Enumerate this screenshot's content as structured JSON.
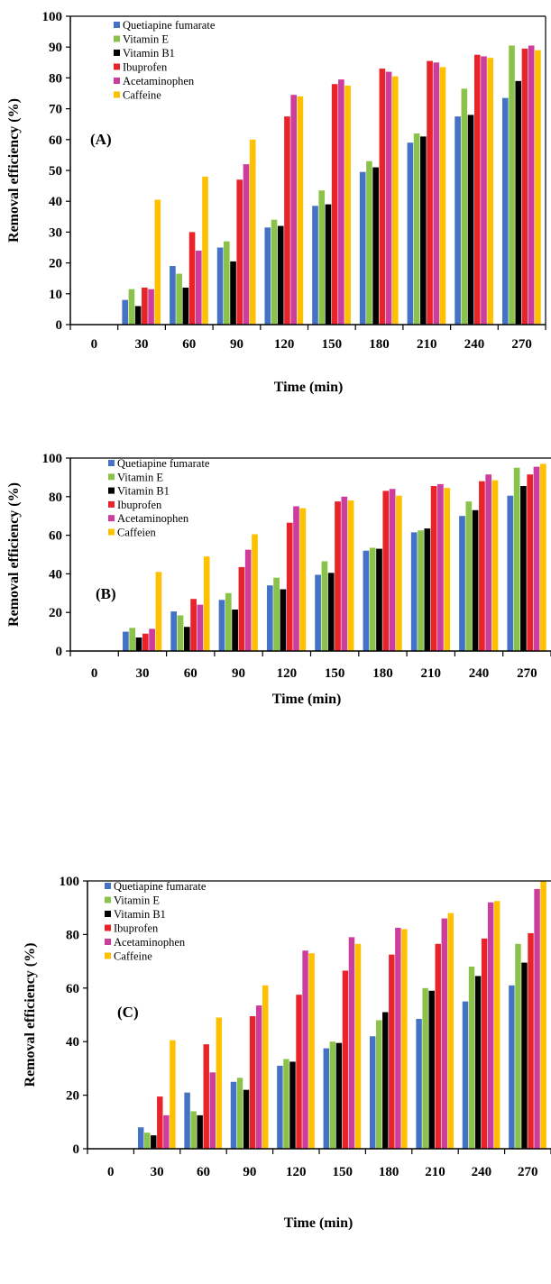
{
  "chart_data": [
    {
      "type": "bar",
      "panel": "(A)",
      "xlabel": "Time (min)",
      "ylabel": "Removal efficiency (%)",
      "ylim": [
        0,
        100
      ],
      "yticks": [
        "0",
        "10",
        "20",
        "30",
        "40",
        "50",
        "60",
        "70",
        "80",
        "90",
        "100"
      ],
      "categories": [
        "0",
        "30",
        "60",
        "90",
        "120",
        "150",
        "180",
        "210",
        "240",
        "270"
      ],
      "legend_position": "top-left",
      "series": [
        {
          "name": "Quetiapine fumarate",
          "color": "#4472C4",
          "values": [
            0,
            8,
            19,
            25,
            31.5,
            38.5,
            49.5,
            59,
            67.5,
            73.5
          ]
        },
        {
          "name": "Vitamin E",
          "color": "#8BC34A",
          "values": [
            0,
            11.5,
            16.5,
            27,
            34,
            43.5,
            53,
            62,
            76.5,
            90.5
          ]
        },
        {
          "name": "Vitamin B1",
          "color": "#000000",
          "values": [
            0,
            6,
            12,
            20.5,
            32,
            39,
            51,
            61,
            68,
            79
          ]
        },
        {
          "name": "Ibuprofen",
          "color": "#E8232A",
          "values": [
            0,
            12,
            30,
            47,
            67.5,
            78,
            83,
            85.5,
            87.5,
            89.5
          ]
        },
        {
          "name": "Acetaminophen",
          "color": "#CC3D9E",
          "values": [
            0,
            11.5,
            24,
            52,
            74.5,
            79.5,
            82,
            85,
            87,
            90.5
          ]
        },
        {
          "name": "Caffeine",
          "color": "#FFC000",
          "values": [
            0,
            40.5,
            48,
            60,
            74,
            77.5,
            80.5,
            83.5,
            86.5,
            89
          ]
        }
      ]
    },
    {
      "type": "bar",
      "panel": "(B)",
      "xlabel": "Time (min)",
      "ylabel": "Removal efficiency (%)",
      "ylim": [
        0,
        100
      ],
      "yticks": [
        "0",
        "20",
        "40",
        "60",
        "80",
        "100"
      ],
      "categories": [
        "0",
        "30",
        "60",
        "90",
        "120",
        "150",
        "180",
        "210",
        "240",
        "270"
      ],
      "legend_position": "top-left",
      "series": [
        {
          "name": "Quetiapine fumarate",
          "color": "#4472C4",
          "values": [
            0,
            10,
            20.5,
            26.5,
            34,
            39.5,
            52,
            61.5,
            70,
            80.5
          ]
        },
        {
          "name": "Vitamin E",
          "color": "#8BC34A",
          "values": [
            0,
            12,
            18.5,
            30,
            38,
            46.5,
            53.5,
            62.5,
            77.5,
            95
          ]
        },
        {
          "name": "Vitamin B1",
          "color": "#000000",
          "values": [
            0,
            7,
            12.5,
            21.5,
            32,
            40.5,
            53,
            63.5,
            73,
            85.5
          ]
        },
        {
          "name": "Ibuprofen",
          "color": "#E8232A",
          "values": [
            0,
            9,
            27,
            43.5,
            66.5,
            77.5,
            83,
            85.5,
            88,
            91.5
          ]
        },
        {
          "name": "Acetaminophen",
          "color": "#CC3D9E",
          "values": [
            0,
            11.5,
            24,
            52.5,
            75,
            80,
            84,
            86.5,
            91.5,
            95.5
          ]
        },
        {
          "name": "Caffeien",
          "color": "#FFC000",
          "values": [
            0,
            41,
            49,
            60.5,
            74,
            78,
            80.5,
            84.5,
            88.5,
            97
          ]
        }
      ]
    },
    {
      "type": "bar",
      "panel": "(C)",
      "xlabel": "Time (min)",
      "ylabel": "Removal efficiency (%)",
      "ylim": [
        0,
        100
      ],
      "yticks": [
        "0",
        "20",
        "40",
        "60",
        "80",
        "100"
      ],
      "categories": [
        "0",
        "30",
        "60",
        "90",
        "120",
        "150",
        "180",
        "210",
        "240",
        "270"
      ],
      "legend_position": "top-left",
      "series": [
        {
          "name": "Quetiapine fumarate",
          "color": "#4472C4",
          "values": [
            0,
            8,
            21,
            25,
            31,
            37.5,
            42,
            48.5,
            55,
            61
          ]
        },
        {
          "name": "Vitamin E",
          "color": "#8BC34A",
          "values": [
            0,
            6,
            14,
            26.5,
            33.5,
            40,
            48,
            60,
            68,
            76.5
          ]
        },
        {
          "name": "Vitamin B1",
          "color": "#000000",
          "values": [
            0,
            5,
            12.5,
            22,
            32.5,
            39.5,
            51,
            59,
            64.5,
            69.5
          ]
        },
        {
          "name": "Ibuprofen",
          "color": "#E8232A",
          "values": [
            0,
            19.5,
            39,
            49.5,
            57.5,
            66.5,
            72.5,
            76.5,
            78.5,
            80.5
          ]
        },
        {
          "name": "Acetaminophen",
          "color": "#CC3D9E",
          "values": [
            0,
            12.5,
            28.5,
            53.5,
            74,
            79,
            82.5,
            86,
            92,
            97
          ]
        },
        {
          "name": "Caffeine",
          "color": "#FFC000",
          "values": [
            0,
            40.5,
            49,
            61,
            73,
            76.5,
            82,
            88,
            92.5,
            100
          ]
        }
      ]
    }
  ]
}
